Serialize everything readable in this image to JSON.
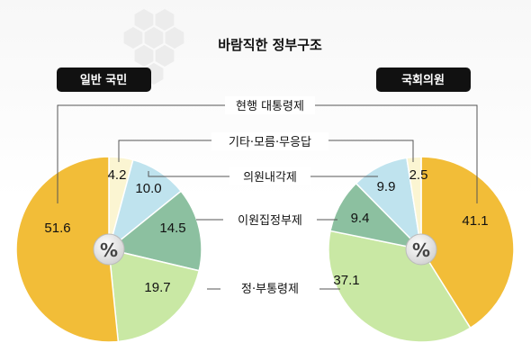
{
  "chart_data": {
    "type": "pie",
    "title": "바람직한 정부구조",
    "center_label": "%",
    "categories": [
      "현행 대통령제",
      "기타·모름·무응답",
      "의원내각제",
      "이원집정부제",
      "정·부통령제"
    ],
    "series": [
      {
        "name": "일반 국민",
        "values": [
          51.6,
          4.2,
          10.0,
          14.5,
          19.7
        ]
      },
      {
        "name": "국회의원",
        "values": [
          41.1,
          2.5,
          9.9,
          9.4,
          37.1
        ]
      }
    ],
    "value_labels": {
      "left": [
        "51.6",
        "4.2",
        "10.0",
        "14.5",
        "19.7"
      ],
      "right": [
        "41.1",
        "2.5",
        "9.9",
        "9.4",
        "37.1"
      ]
    },
    "colors": {
      "현행 대통령제": "#f2bd38",
      "기타·모름·무응답": "#fbf5d2",
      "의원내각제": "#bfe3ee",
      "이원집정부제": "#8cc0a0",
      "정·부통령제": "#c9e8a4"
    },
    "legend_placement": "center"
  }
}
